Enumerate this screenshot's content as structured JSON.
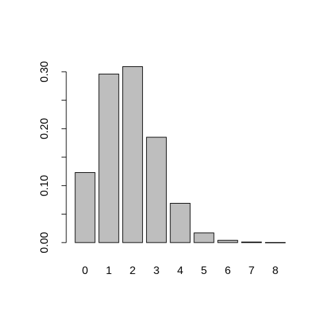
{
  "chart_data": {
    "type": "bar",
    "categories": [
      "0",
      "1",
      "2",
      "3",
      "4",
      "5",
      "6",
      "7",
      "8"
    ],
    "values": [
      0.123,
      0.296,
      0.309,
      0.185,
      0.069,
      0.017,
      0.004,
      0.001,
      0.0001
    ],
    "title": "",
    "xlabel": "",
    "ylabel": "",
    "ylim": [
      0,
      0.32
    ],
    "yticks": [
      0.0,
      0.05,
      0.1,
      0.15,
      0.2,
      0.25,
      0.3
    ],
    "ytick_labels": [
      "0.00",
      "",
      "0.10",
      "",
      "0.20",
      "",
      "0.30"
    ],
    "grid": false,
    "bar_color": "#bebebe",
    "edge_color": "#000000"
  }
}
